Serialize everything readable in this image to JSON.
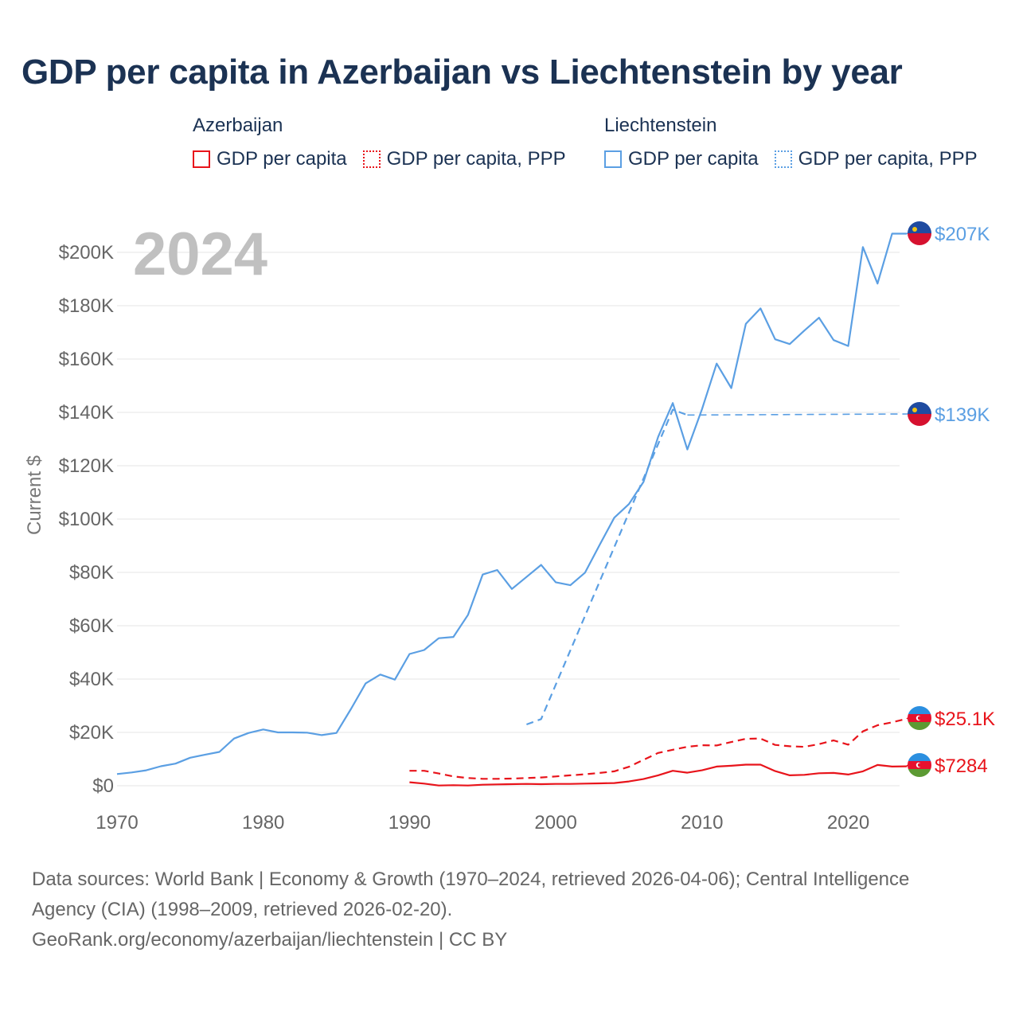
{
  "title": "GDP per capita in Azerbaijan vs Liechtenstein by year",
  "legend": {
    "groups": [
      {
        "name": "Azerbaijan",
        "color": "#e8141b",
        "items": [
          {
            "label": "GDP per capita",
            "style": "solid"
          },
          {
            "label": "GDP per capita, PPP",
            "style": "dotted"
          }
        ]
      },
      {
        "name": "Liechtenstein",
        "color": "#5b9fe3",
        "items": [
          {
            "label": "GDP per capita",
            "style": "solid"
          },
          {
            "label": "GDP per capita, PPP",
            "style": "dotted"
          }
        ]
      }
    ]
  },
  "footer": {
    "line1": "Data sources: World Bank | Economy & Growth (1970–2024, retrieved 2026-04-06); Central Intelligence",
    "line2": "Agency (CIA) (1998–2009, retrieved 2026-02-20).",
    "line3": "GeoRank.org/economy/azerbaijan/liechtenstein | CC BY"
  },
  "chart_data": {
    "type": "line",
    "title": "GDP per capita in Azerbaijan vs Liechtenstein by year",
    "year_overlay": "2024",
    "xlabel": "",
    "ylabel": "Current $",
    "xlim": [
      1970,
      2024
    ],
    "ylim": [
      0,
      210000
    ],
    "x_ticks": [
      1970,
      1980,
      1990,
      2000,
      2010,
      2020
    ],
    "y_ticks": [
      {
        "value": 0,
        "label": "$0"
      },
      {
        "value": 20000,
        "label": "$20K"
      },
      {
        "value": 40000,
        "label": "$40K"
      },
      {
        "value": 60000,
        "label": "$60K"
      },
      {
        "value": 80000,
        "label": "$80K"
      },
      {
        "value": 100000,
        "label": "$100K"
      },
      {
        "value": 120000,
        "label": "$120K"
      },
      {
        "value": 140000,
        "label": "$140K"
      },
      {
        "value": 160000,
        "label": "$160K"
      },
      {
        "value": 180000,
        "label": "$180K"
      },
      {
        "value": 200000,
        "label": "$200K"
      }
    ],
    "grid": true,
    "series": [
      {
        "name": "Liechtenstein GDP per capita",
        "country": "Liechtenstein",
        "color": "#5b9fe3",
        "dash": "solid",
        "end_label": "$207K",
        "end_value": 207000,
        "x": [
          1970,
          1971,
          1972,
          1973,
          1974,
          1975,
          1976,
          1977,
          1978,
          1979,
          1980,
          1981,
          1982,
          1983,
          1984,
          1985,
          1986,
          1987,
          1988,
          1989,
          1990,
          1991,
          1992,
          1993,
          1994,
          1995,
          1996,
          1997,
          1998,
          1999,
          2000,
          2001,
          2002,
          2003,
          2004,
          2005,
          2006,
          2007,
          2008,
          2009,
          2010,
          2011,
          2012,
          2013,
          2014,
          2015,
          2016,
          2017,
          2018,
          2019,
          2020,
          2021,
          2022,
          2023,
          2024
        ],
        "values": [
          4400,
          5000,
          5800,
          7300,
          8300,
          10500,
          11600,
          12700,
          17700,
          19800,
          21100,
          20000,
          20000,
          19900,
          19000,
          19800,
          28800,
          38400,
          41700,
          39800,
          49400,
          50900,
          55300,
          55800,
          64100,
          79200,
          80900,
          73800,
          78300,
          82800,
          76300,
          75200,
          79900,
          90300,
          100500,
          105600,
          113900,
          130800,
          143500,
          126100,
          141200,
          158300,
          149100,
          173200,
          179000,
          167400,
          165600,
          170700,
          175500,
          167100,
          164900,
          202000,
          188300,
          207000,
          207000
        ]
      },
      {
        "name": "Liechtenstein GDP per capita, PPP",
        "country": "Liechtenstein",
        "color": "#5b9fe3",
        "dash": "dashed",
        "end_label": "$139K",
        "end_value": 139000,
        "x": [
          1998,
          1999,
          2008,
          2009
        ],
        "values": [
          23000,
          25000,
          141000,
          139000
        ]
      },
      {
        "name": "Azerbaijan GDP per capita, PPP",
        "country": "Azerbaijan",
        "color": "#e8141b",
        "dash": "dashed",
        "end_label": "$25.1K",
        "end_value": 25100,
        "x": [
          1990,
          1991,
          1992,
          1993,
          1994,
          1995,
          1996,
          1997,
          1998,
          1999,
          2000,
          2001,
          2002,
          2003,
          2004,
          2005,
          2006,
          2007,
          2008,
          2009,
          2010,
          2011,
          2012,
          2013,
          2014,
          2015,
          2016,
          2017,
          2018,
          2019,
          2020,
          2021,
          2022,
          2023,
          2024
        ],
        "values": [
          5600,
          5600,
          4600,
          3500,
          2900,
          2600,
          2600,
          2700,
          2900,
          3100,
          3500,
          3900,
          4300,
          4800,
          5400,
          7100,
          9700,
          12300,
          13500,
          14600,
          15200,
          15100,
          16400,
          17600,
          17700,
          15300,
          14800,
          14600,
          15600,
          17000,
          15400,
          20400,
          22700,
          23800,
          25100
        ]
      },
      {
        "name": "Azerbaijan GDP per capita",
        "country": "Azerbaijan",
        "color": "#e8141b",
        "dash": "solid",
        "end_label": "$7284",
        "end_value": 7284,
        "x": [
          1990,
          1991,
          1992,
          1993,
          1994,
          1995,
          1996,
          1997,
          1998,
          1999,
          2000,
          2001,
          2002,
          2003,
          2004,
          2005,
          2006,
          2007,
          2008,
          2009,
          2010,
          2011,
          2012,
          2013,
          2014,
          2015,
          2016,
          2017,
          2018,
          2019,
          2020,
          2021,
          2022,
          2023,
          2024
        ],
        "values": [
          1300,
          800,
          100,
          200,
          100,
          400,
          500,
          600,
          700,
          600,
          700,
          700,
          800,
          900,
          1000,
          1600,
          2500,
          3900,
          5600,
          4900,
          5800,
          7200,
          7500,
          7900,
          7900,
          5500,
          3900,
          4100,
          4700,
          4800,
          4200,
          5400,
          7800,
          7200,
          7284
        ]
      }
    ]
  }
}
